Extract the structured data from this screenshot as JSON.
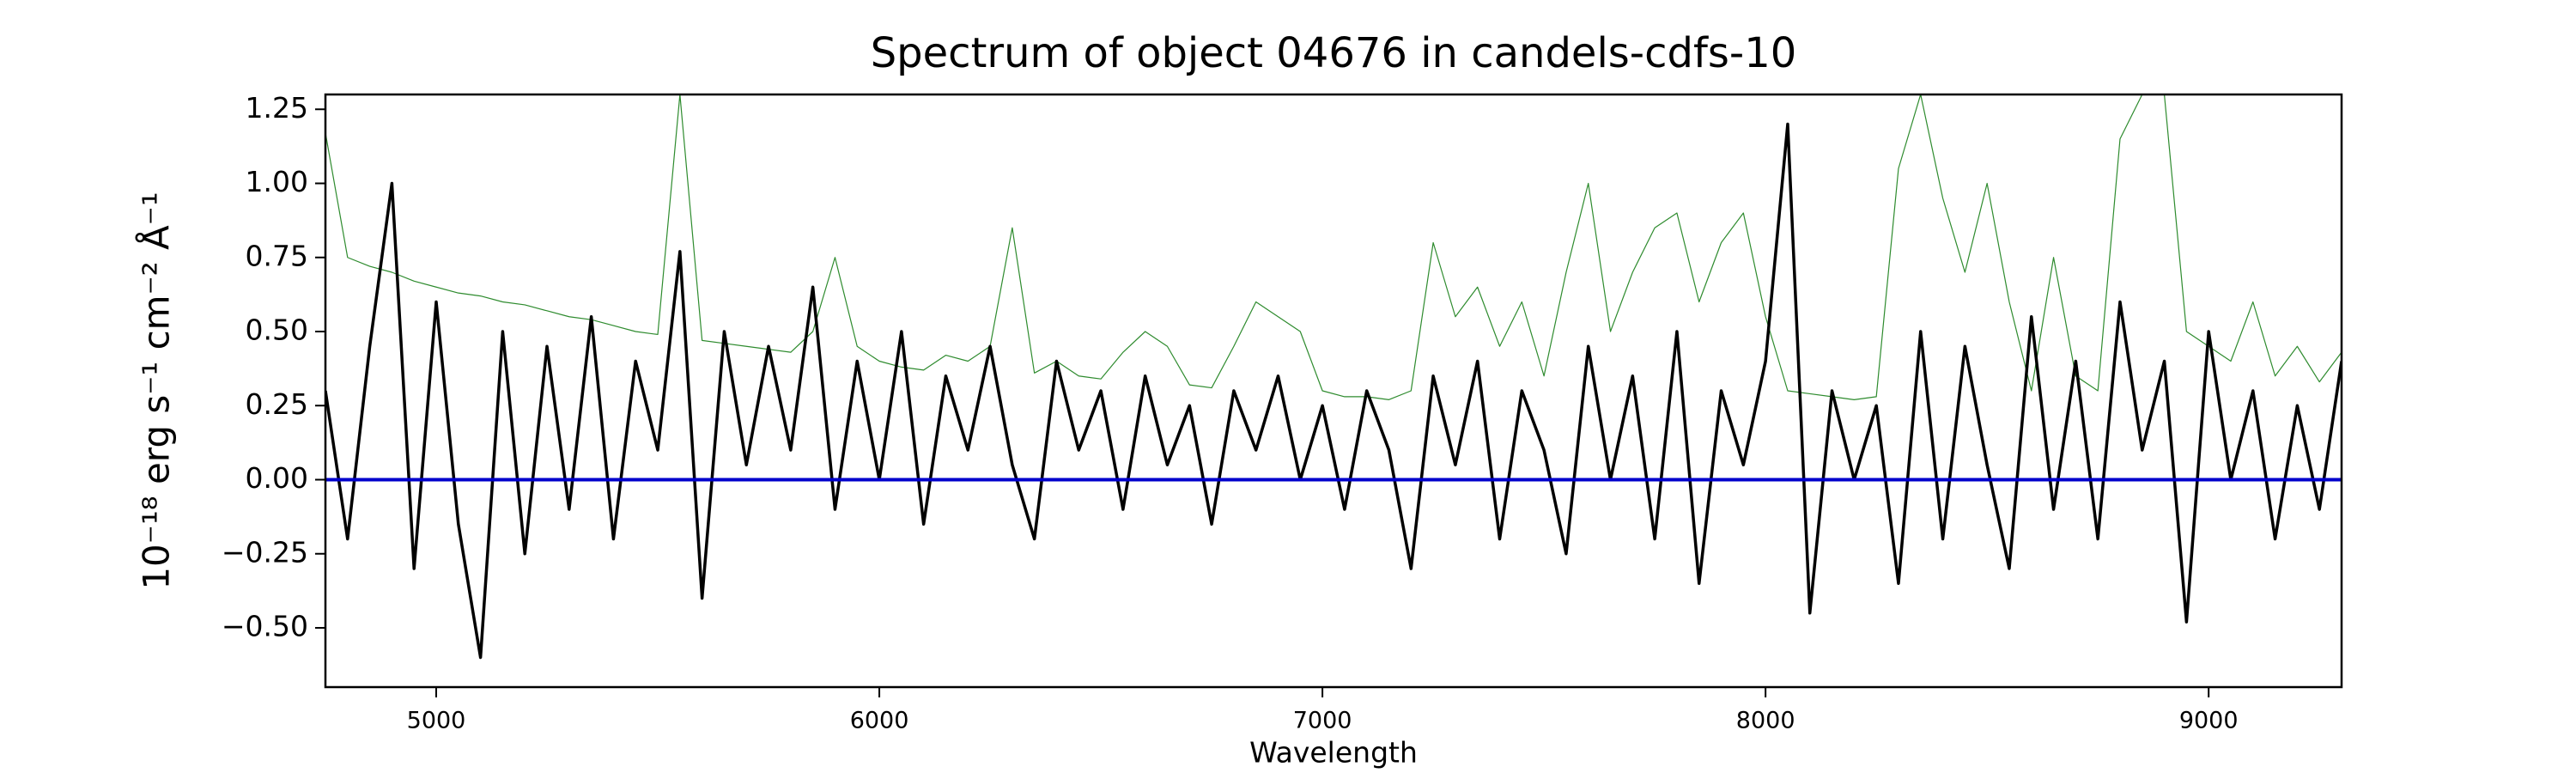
{
  "chart_data": {
    "type": "line",
    "title": "Spectrum of object 04676 in candels-cdfs-10",
    "xlabel": "Wavelength",
    "ylabel": "10⁻¹⁸ erg s⁻¹ cm⁻² Å⁻¹",
    "x": [
      4750,
      4800,
      4850,
      4900,
      4950,
      5000,
      5050,
      5100,
      5150,
      5200,
      5250,
      5300,
      5350,
      5400,
      5450,
      5500,
      5550,
      5600,
      5650,
      5700,
      5750,
      5800,
      5850,
      5900,
      5950,
      6000,
      6050,
      6100,
      6150,
      6200,
      6250,
      6300,
      6350,
      6400,
      6450,
      6500,
      6550,
      6600,
      6650,
      6700,
      6750,
      6800,
      6850,
      6900,
      6950,
      7000,
      7050,
      7100,
      7150,
      7200,
      7250,
      7300,
      7350,
      7400,
      7450,
      7500,
      7550,
      7600,
      7650,
      7700,
      7750,
      7800,
      7850,
      7900,
      7950,
      8000,
      8050,
      8100,
      8150,
      8200,
      8250,
      8300,
      8350,
      8400,
      8450,
      8500,
      8550,
      8600,
      8650,
      8700,
      8750,
      8800,
      8850,
      8900,
      8950,
      9000,
      9050,
      9100,
      9150,
      9200,
      9250,
      9300
    ],
    "series": [
      {
        "color": "#2e8b2e",
        "width": 1.2,
        "values": [
          1.17,
          0.75,
          0.72,
          0.7,
          0.67,
          0.65,
          0.63,
          0.62,
          0.6,
          0.59,
          0.57,
          0.55,
          0.54,
          0.52,
          0.5,
          0.49,
          1.3,
          0.47,
          0.46,
          0.45,
          0.44,
          0.43,
          0.5,
          0.75,
          0.45,
          0.4,
          0.38,
          0.37,
          0.42,
          0.4,
          0.45,
          0.85,
          0.36,
          0.4,
          0.35,
          0.34,
          0.43,
          0.5,
          0.45,
          0.32,
          0.31,
          0.45,
          0.6,
          0.55,
          0.5,
          0.3,
          0.28,
          0.28,
          0.27,
          0.3,
          0.8,
          0.55,
          0.65,
          0.45,
          0.6,
          0.35,
          0.7,
          1.0,
          0.5,
          0.7,
          0.85,
          0.9,
          0.6,
          0.8,
          0.9,
          0.55,
          0.3,
          0.29,
          0.28,
          0.27,
          0.28,
          1.05,
          1.3,
          0.95,
          0.7,
          1.0,
          0.6,
          0.3,
          0.75,
          0.35,
          0.3,
          1.15,
          1.3,
          1.3,
          0.5,
          0.45,
          0.4,
          0.6,
          0.35,
          0.45,
          0.33,
          0.43
        ]
      },
      {
        "color": "#000000",
        "width": 3.5,
        "values": [
          0.3,
          -0.2,
          0.45,
          1.0,
          -0.3,
          0.6,
          -0.15,
          -0.6,
          0.5,
          -0.25,
          0.45,
          -0.1,
          0.55,
          -0.2,
          0.4,
          0.1,
          0.77,
          -0.4,
          0.5,
          0.05,
          0.45,
          0.1,
          0.65,
          -0.1,
          0.4,
          0.0,
          0.5,
          -0.15,
          0.35,
          0.1,
          0.45,
          0.05,
          -0.2,
          0.4,
          0.1,
          0.3,
          -0.1,
          0.35,
          0.05,
          0.25,
          -0.15,
          0.3,
          0.1,
          0.35,
          0.0,
          0.25,
          -0.1,
          0.3,
          0.1,
          -0.3,
          0.35,
          0.05,
          0.4,
          -0.2,
          0.3,
          0.1,
          -0.25,
          0.45,
          0.0,
          0.35,
          -0.2,
          0.5,
          -0.35,
          0.3,
          0.05,
          0.4,
          1.2,
          -0.45,
          0.3,
          0.0,
          0.25,
          -0.35,
          0.5,
          -0.2,
          0.45,
          0.05,
          -0.3,
          0.55,
          -0.1,
          0.4,
          -0.2,
          0.6,
          0.1,
          0.4,
          -0.48,
          0.5,
          0.0,
          0.3,
          -0.2,
          0.25,
          -0.1,
          0.4
        ]
      },
      {
        "color": "#0000cc",
        "width": 4,
        "values": [
          0,
          0,
          0,
          0,
          0,
          0,
          0,
          0,
          0,
          0,
          0,
          0,
          0,
          0,
          0,
          0,
          0,
          0,
          0,
          0,
          0,
          0,
          0,
          0,
          0,
          0,
          0,
          0,
          0,
          0,
          0,
          0,
          0,
          0,
          0,
          0,
          0,
          0,
          0,
          0,
          0,
          0,
          0,
          0,
          0,
          0,
          0,
          0,
          0,
          0,
          0,
          0,
          0,
          0,
          0,
          0,
          0,
          0,
          0,
          0,
          0,
          0,
          0,
          0,
          0,
          0,
          0,
          0,
          0,
          0,
          0,
          0,
          0,
          0,
          0,
          0,
          0,
          0,
          0,
          0,
          0,
          0,
          0,
          0,
          0,
          0,
          0,
          0,
          0,
          0,
          0,
          0
        ]
      }
    ],
    "xlim": [
      4750,
      9300
    ],
    "xticks": [
      5000,
      6000,
      7000,
      8000,
      9000
    ],
    "ylim": [
      -0.7,
      1.3
    ],
    "yticks": [
      {
        "value": -0.5,
        "label": "−0.50"
      },
      {
        "value": -0.25,
        "label": "−0.25"
      },
      {
        "value": 0,
        "label": "0.00"
      },
      {
        "value": 0.25,
        "label": "0.25"
      },
      {
        "value": 0.5,
        "label": "0.50"
      },
      {
        "value": 0.75,
        "label": "0.75"
      },
      {
        "value": 1.0,
        "label": "1.00"
      },
      {
        "value": 1.25,
        "label": "1.25"
      }
    ],
    "grid": false
  }
}
